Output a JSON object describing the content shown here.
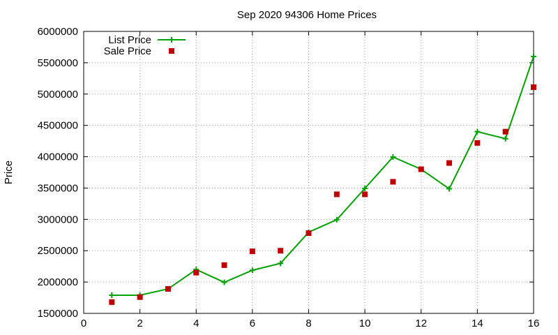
{
  "chart_data": {
    "type": "line",
    "title": "Sep 2020 94306 Home Prices",
    "xlabel": "",
    "ylabel": "Price",
    "xlim": [
      0,
      16
    ],
    "ylim": [
      1500000,
      6000000
    ],
    "x_ticks": [
      0,
      2,
      4,
      6,
      8,
      10,
      12,
      14,
      16
    ],
    "y_ticks": [
      1500000,
      2000000,
      2500000,
      3000000,
      3500000,
      4000000,
      4500000,
      5000000,
      5500000,
      6000000
    ],
    "grid": true,
    "legend_position": "top-left",
    "series": [
      {
        "name": "List Price",
        "style": "line with plus markers",
        "color": "#00a000",
        "x": [
          1,
          2,
          3,
          4,
          5,
          6,
          7,
          8,
          9,
          10,
          11,
          12,
          13,
          14,
          15,
          16
        ],
        "values": [
          1790000,
          1790000,
          1890000,
          2200000,
          1995000,
          2188000,
          2298000,
          2795000,
          2995000,
          3495000,
          3995000,
          3800000,
          3488000,
          4400000,
          4288000,
          5600000
        ]
      },
      {
        "name": "Sale Price",
        "style": "square markers",
        "color": "#c00000",
        "x": [
          1,
          2,
          3,
          4,
          5,
          6,
          7,
          8,
          9,
          10,
          11,
          12,
          13,
          14,
          15,
          16
        ],
        "values": [
          1680000,
          1760000,
          1890000,
          2150000,
          2270000,
          2490000,
          2500000,
          2780000,
          3400000,
          3400000,
          3600000,
          3800000,
          3900000,
          4220000,
          4400000,
          5110000
        ]
      }
    ]
  }
}
